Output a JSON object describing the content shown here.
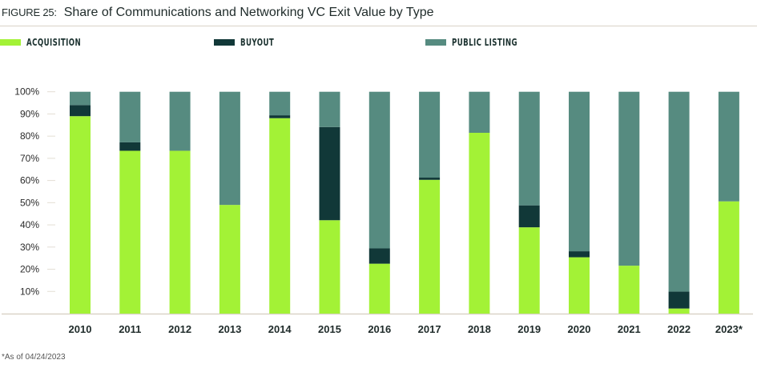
{
  "title": {
    "figure": "FIGURE 25:",
    "text": "Share of Communications and Networking VC Exit Value by Type"
  },
  "footnote": "*As of 04/24/2023",
  "colors": {
    "acquisition": "#a3f236",
    "buyout": "#113838",
    "public_listing": "#568b80"
  },
  "chart_data": {
    "type": "bar",
    "stacked": true,
    "title": "Share of Communications and Networking VC Exit Value by Type",
    "xlabel": "",
    "ylabel": "",
    "ylim": [
      0,
      100
    ],
    "yticks": [
      "10%",
      "20%",
      "30%",
      "40%",
      "50%",
      "60%",
      "70%",
      "80%",
      "90%",
      "100%"
    ],
    "legend_position": "top",
    "grid": false,
    "categories": [
      "2010",
      "2011",
      "2012",
      "2013",
      "2014",
      "2015",
      "2016",
      "2017",
      "2018",
      "2019",
      "2020",
      "2021",
      "2022",
      "2023*"
    ],
    "series": [
      {
        "name": "ACQUISITION",
        "values": [
          89.0,
          73.4,
          73.4,
          49.0,
          88.1,
          42.1,
          22.5,
          60.3,
          81.5,
          38.9,
          25.4,
          21.6,
          2.3,
          50.6
        ]
      },
      {
        "name": "BUYOUT",
        "values": [
          5.0,
          3.8,
          0,
          0,
          1.3,
          42.0,
          6.9,
          1.0,
          0,
          9.9,
          2.7,
          0,
          7.6,
          0
        ]
      },
      {
        "name": "PUBLIC LISTING",
        "values": [
          6.0,
          22.8,
          26.6,
          51.0,
          10.6,
          15.9,
          70.6,
          38.7,
          18.5,
          51.2,
          71.9,
          78.4,
          90.1,
          49.4
        ]
      }
    ]
  }
}
